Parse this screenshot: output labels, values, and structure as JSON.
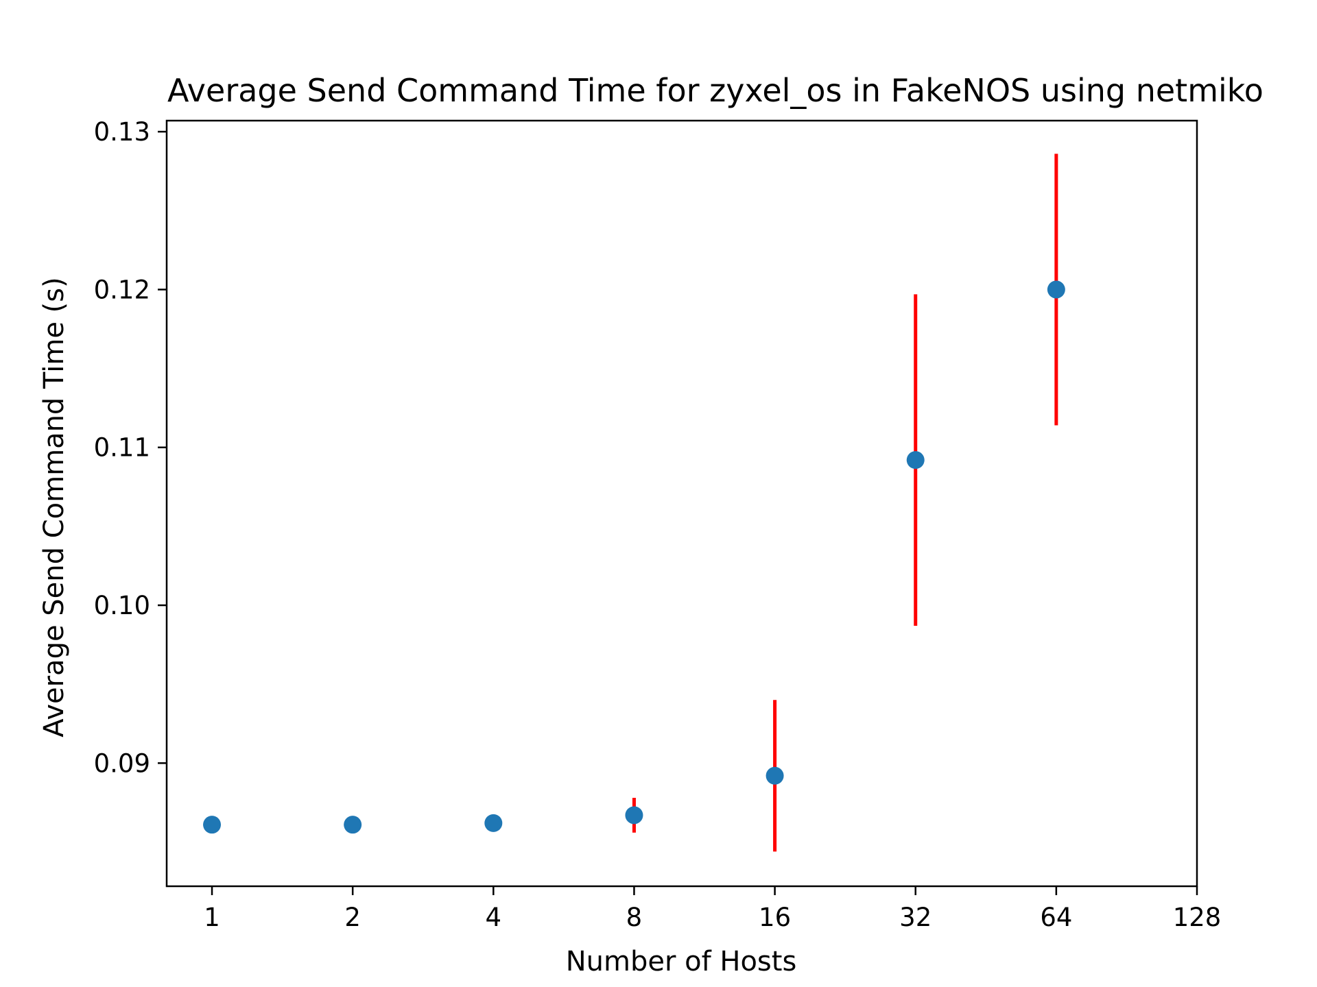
{
  "chart_data": {
    "type": "scatter",
    "title": "Average Send Command Time for zyxel_os in FakeNOS using netmiko",
    "xlabel": "Number of Hosts",
    "ylabel": "Average Send Command Time (s)",
    "x_scale": "log2",
    "xlim": [
      0.8,
      128
    ],
    "ylim": [
      0.0822,
      0.1307
    ],
    "x_ticks": [
      1,
      2,
      4,
      8,
      16,
      32,
      64,
      128
    ],
    "x_tick_labels": [
      "1",
      "2",
      "4",
      "8",
      "16",
      "32",
      "64",
      "128"
    ],
    "y_ticks": [
      0.09,
      0.1,
      0.11,
      0.12,
      0.13
    ],
    "y_tick_labels": [
      "0.09",
      "0.10",
      "0.11",
      "0.12",
      "0.13"
    ],
    "grid": false,
    "legend": "none",
    "marker_color": "#1f77b4",
    "error_color": "#ff0000",
    "points": [
      {
        "x": 1,
        "y": 0.0861,
        "err": 0.0
      },
      {
        "x": 2,
        "y": 0.0861,
        "err": 0.0
      },
      {
        "x": 4,
        "y": 0.0862,
        "err": 0.0
      },
      {
        "x": 8,
        "y": 0.0867,
        "err": 0.0011
      },
      {
        "x": 16,
        "y": 0.0892,
        "err": 0.0048
      },
      {
        "x": 32,
        "y": 0.1092,
        "err": 0.0105
      },
      {
        "x": 64,
        "y": 0.12,
        "err": 0.0086
      }
    ]
  }
}
